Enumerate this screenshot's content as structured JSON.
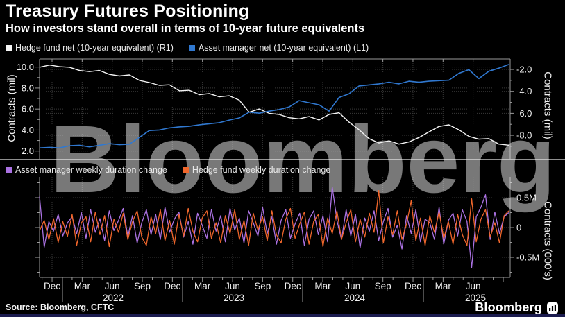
{
  "header": {
    "title": "Treasury Futures Positioning",
    "subtitle": "How investors stand overall in terms of 10-year future equivalents"
  },
  "watermark": {
    "text": "Bloomberg"
  },
  "footer": {
    "source": "Source: Bloomberg, CFTC",
    "brand": "Bloomberg"
  },
  "colors": {
    "background": "#000000",
    "hedge_fund_line": "#f5f5f5",
    "asset_manager_line": "#3078d0",
    "am_duration_line": "#ab72e3",
    "hf_duration_line": "#f0662b",
    "grid": "#3a3a3a",
    "axis": "#9a9a9a",
    "watermark_gray": "#a0a0a0",
    "bottom_bar": "#1b1b4f"
  },
  "legend1": {
    "items": [
      {
        "label": "Hedge fund net (10-year equivalent) (R1)",
        "color": "#f5f5f5"
      },
      {
        "label": "Asset manager net (10-year equivalent) (L1)",
        "color": "#3078d0"
      }
    ]
  },
  "legend2": {
    "items": [
      {
        "label": "Asset manager weekly duration change",
        "color": "#ab72e3"
      },
      {
        "label": "Hedge fund weekly duration change",
        "color": "#f0662b"
      }
    ]
  },
  "x_axis": {
    "quarter_labels": [
      "Dec",
      "Mar",
      "Jun",
      "Sep",
      "Dec",
      "Mar",
      "Jun",
      "Sep",
      "Dec",
      "Mar",
      "Jun",
      "Sep",
      "Dec",
      "Mar",
      "Jun"
    ],
    "year_labels": [
      "2022",
      "2023",
      "2024",
      "2025"
    ],
    "start": "Oct 2021",
    "end": "Sep 2025"
  },
  "chart_data": [
    {
      "type": "line",
      "panel": "top",
      "left_axis": {
        "label": "Contracts (mil)",
        "tick_labels": [
          "10.0",
          "8.0",
          "6.0",
          "4.0",
          "2.0"
        ],
        "tick_values": [
          10,
          8,
          6,
          4,
          2
        ],
        "minor_ticks": [
          9,
          7,
          5,
          3
        ],
        "range": [
          1.32,
          10.77
        ]
      },
      "right_axis": {
        "label": "Contracts (mil)",
        "tick_labels": [
          "-2.0",
          "-4.0",
          "-6.0",
          "-8.0"
        ],
        "tick_values": [
          -2,
          -4,
          -6,
          -8
        ],
        "minor_ticks": [
          -3,
          -5,
          -7,
          -9
        ],
        "range": [
          -10.08,
          -1.05
        ]
      },
      "x_unit": "monthly Oct 2021 - Sep 2025",
      "series": [
        {
          "name": "Hedge fund net (10-year equivalent)",
          "axis": "right",
          "color": "#f5f5f5",
          "width": 1.4,
          "values": [
            -1.8,
            -1.6,
            -1.75,
            -1.8,
            -2.1,
            -2.2,
            -2.1,
            -2.45,
            -2.6,
            -2.5,
            -3.0,
            -3.2,
            -3.45,
            -3.4,
            -3.95,
            -3.9,
            -4.3,
            -4.2,
            -4.5,
            -4.4,
            -4.8,
            -5.9,
            -5.6,
            -6.0,
            -6.1,
            -6.4,
            -6.5,
            -6.3,
            -6.6,
            -6.1,
            -5.95,
            -6.8,
            -7.5,
            -8.3,
            -8.7,
            -8.5,
            -8.8,
            -8.6,
            -8.2,
            -7.7,
            -7.2,
            -7.05,
            -7.5,
            -8.1,
            -8.35,
            -8.3,
            -8.8,
            -8.9
          ]
        },
        {
          "name": "Asset manager net (10-year equivalent)",
          "axis": "left",
          "color": "#3078d0",
          "width": 1.6,
          "values": [
            2.3,
            2.35,
            2.3,
            2.5,
            2.55,
            2.4,
            2.55,
            2.7,
            2.6,
            2.65,
            3.3,
            3.95,
            4.0,
            4.2,
            4.3,
            4.35,
            4.5,
            4.6,
            4.7,
            4.95,
            5.15,
            5.7,
            5.6,
            5.8,
            5.95,
            6.2,
            6.8,
            6.6,
            6.4,
            5.8,
            7.1,
            7.45,
            8.2,
            8.3,
            8.4,
            8.55,
            8.4,
            8.65,
            8.55,
            8.65,
            8.7,
            8.75,
            9.4,
            9.75,
            8.9,
            9.6,
            9.9,
            10.25
          ]
        }
      ]
    },
    {
      "type": "line",
      "panel": "bottom",
      "right_axis": {
        "label": "Contracts (000's)",
        "tick_labels": [
          "0.5M",
          "0",
          "-0.5M"
        ],
        "tick_values": [
          0.5,
          0,
          -0.5
        ],
        "minor_ticks": [
          0.75,
          0.25,
          -0.25,
          -0.75
        ],
        "range": [
          -0.837,
          0.849
        ]
      },
      "x_unit": "biweekly Oct 2021 - Sep 2025",
      "series": [
        {
          "name": "Asset manager weekly duration change",
          "axis": "right",
          "color": "#ab72e3",
          "width": 1.3,
          "values": [
            0.52,
            -0.33,
            0.1,
            -0.06,
            0.22,
            -0.14,
            0.08,
            0.18,
            -0.1,
            0.25,
            -0.18,
            0.3,
            -0.08,
            0.15,
            -0.22,
            0.28,
            -0.05,
            0.12,
            0.32,
            -0.15,
            0.2,
            -0.26,
            0.08,
            0.3,
            -0.12,
            0.22,
            -0.2,
            0.34,
            -0.08,
            0.14,
            0.26,
            -0.16,
            0.1,
            -0.28,
            0.24,
            0.04,
            -0.18,
            0.3,
            -0.06,
            0.2,
            -0.24,
            0.32,
            -0.04,
            0.16,
            -0.26,
            0.28,
            0.08,
            -0.14,
            0.34,
            -0.1,
            0.18,
            -0.28,
            0.12,
            0.3,
            -0.18,
            0.06,
            0.24,
            -0.3,
            0.14,
            0.28,
            -0.12,
            0.2,
            -0.24,
            0.68,
            0.12,
            -0.2,
            0.3,
            -0.14,
            0.22,
            -0.34,
            0.16,
            -0.06,
            0.28,
            -0.22,
            0.1,
            0.32,
            -0.16,
            0.04,
            -0.36,
            0.2,
            -0.1,
            0.3,
            -0.24,
            0.14,
            0.08,
            -0.2,
            0.34,
            -0.28,
            0.12,
            0.24,
            -0.14,
            0.3,
            0.1,
            -0.67,
            0.18,
            0.34,
            0.55,
            -0.2,
            0.26,
            -0.1,
            0.18,
            0.25
          ]
        },
        {
          "name": "Hedge fund weekly duration change",
          "axis": "right",
          "color": "#f0662b",
          "width": 1.3,
          "values": [
            -0.05,
            0.12,
            -0.2,
            0.15,
            -0.25,
            0.1,
            -0.15,
            0.22,
            -0.3,
            0.08,
            0.18,
            -0.24,
            0.26,
            -0.12,
            0.2,
            -0.32,
            0.14,
            -0.08,
            0.24,
            -0.2,
            0.1,
            0.28,
            -0.16,
            -0.3,
            0.18,
            -0.1,
            0.3,
            -0.22,
            0.12,
            -0.28,
            0.22,
            -0.14,
            0.32,
            -0.06,
            -0.24,
            0.16,
            0.28,
            -0.18,
            0.08,
            -0.26,
            0.2,
            -0.1,
            0.3,
            -0.2,
            0.12,
            -0.3,
            0.24,
            -0.04,
            0.18,
            -0.22,
            0.28,
            -0.12,
            -0.26,
            0.14,
            0.32,
            -0.18,
            0.06,
            0.26,
            -0.28,
            0.1,
            0.22,
            -0.32,
            0.16,
            -0.1,
            0.28,
            -0.2,
            0.08,
            0.3,
            -0.24,
            0.14,
            -0.16,
            0.24,
            -0.08,
            0.62,
            -0.26,
            0.18,
            -0.12,
            0.28,
            -0.2,
            0.06,
            0.45,
            -0.22,
            0.16,
            -0.3,
            0.2,
            -0.08,
            0.26,
            -0.18,
            0.1,
            -0.28,
            0.22,
            -0.12,
            -0.3,
            0.48,
            -0.24,
            0.14,
            0.3,
            -0.16,
            0.08,
            -0.26,
            0.2,
            0.28
          ]
        }
      ]
    }
  ]
}
